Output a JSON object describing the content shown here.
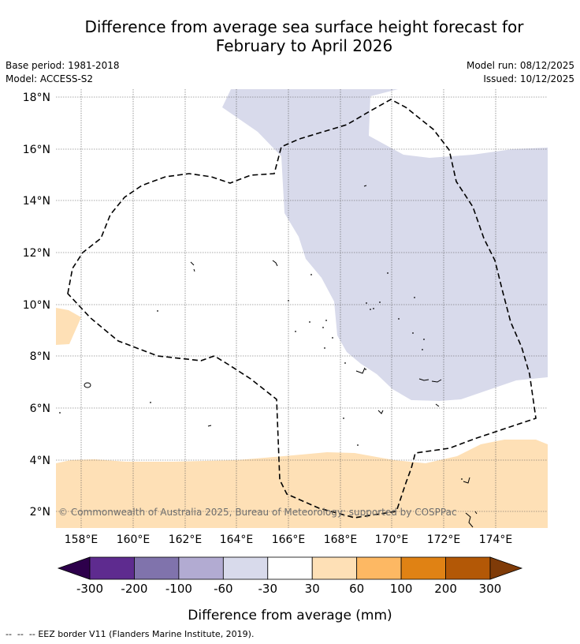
{
  "title_line1": "Difference from average sea surface height forecast for",
  "title_line2": "February to April 2026",
  "base_period": "Base period: 1981-2018",
  "model": "Model: ACCESS-S2",
  "model_run": "Model run: 08/12/2025",
  "issued": "Issued: 10/12/2025",
  "copyright": "© Commonwealth of Australia 2025, Bureau of Meteorology; supported by COSPPac",
  "lat_ticks": [
    "18°N",
    "16°N",
    "14°N",
    "12°N",
    "10°N",
    "8°N",
    "6°N",
    "4°N",
    "2°N"
  ],
  "lon_ticks": [
    "158°E",
    "160°E",
    "162°E",
    "164°E",
    "166°E",
    "168°E",
    "170°E",
    "172°E",
    "174°E"
  ],
  "colorbar": {
    "tick_labels": [
      "-300",
      "-200",
      "-100",
      "-60",
      "-30",
      "30",
      "60",
      "100",
      "200",
      "300"
    ],
    "colors": [
      "#2d004b",
      "#5e2b8f",
      "#8073ac",
      "#b2abd2",
      "#d8daeb",
      "#ffffff",
      "#fee0b6",
      "#fdb863",
      "#e08214",
      "#b35806",
      "#7f3b08"
    ],
    "label": "Difference from average (mm)"
  },
  "footnote": "EEZ border V11 (Flanders Marine Institute, 2019)."
}
